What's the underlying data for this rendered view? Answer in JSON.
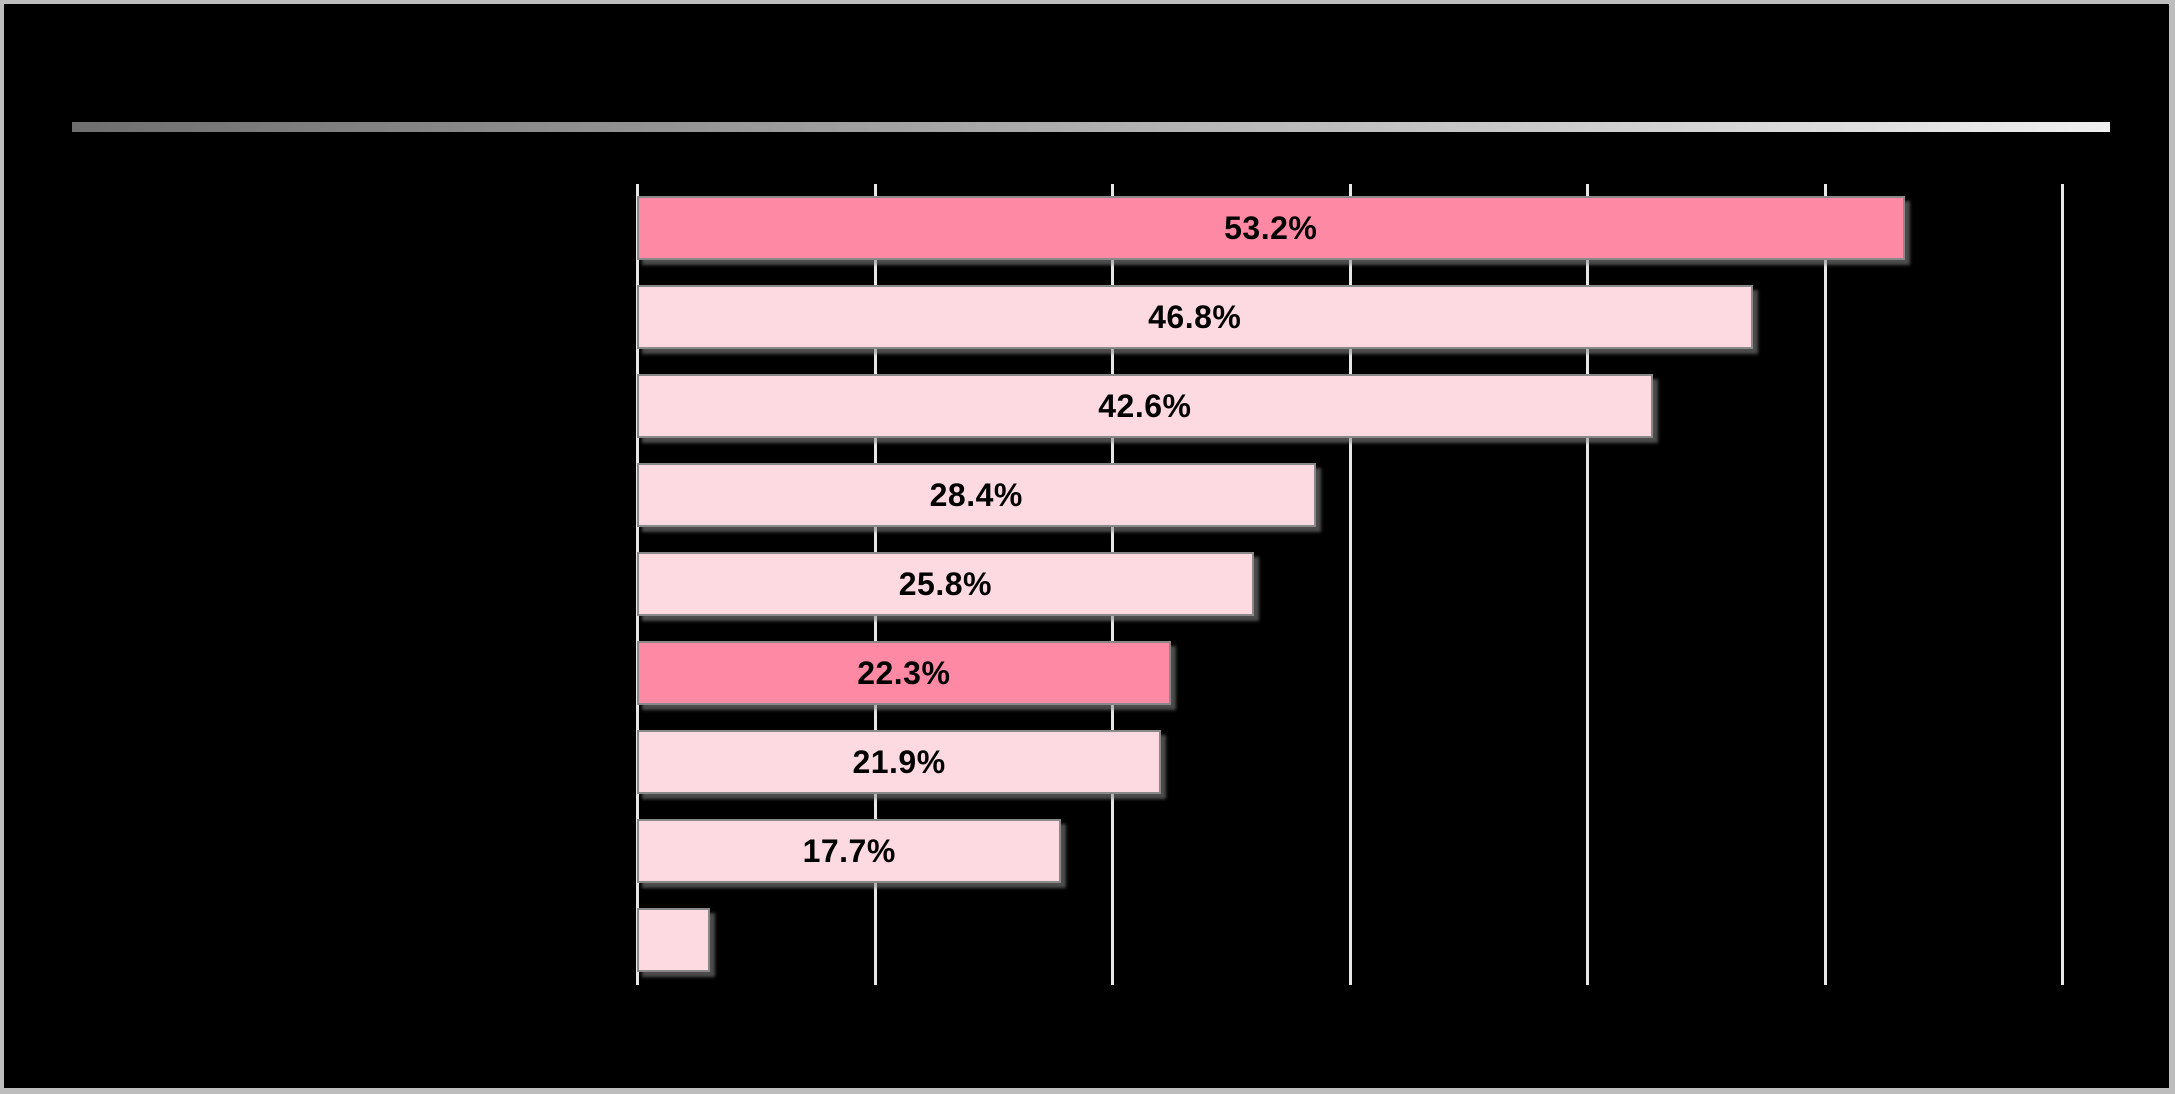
{
  "window": {
    "background_color": "#000000",
    "frame_border_color": "#bdbdbd"
  },
  "header": {
    "title_divider": {
      "gradient_start": "#6f6f6f",
      "gradient_end": "#eeeeee"
    }
  },
  "chart_data": {
    "type": "bar",
    "orientation": "horizontal",
    "values": [
      53.2,
      46.8,
      42.6,
      28.4,
      25.8,
      22.3,
      21.9,
      17.7,
      2.9
    ],
    "data_labels": [
      "53.2%",
      "46.8%",
      "42.6%",
      "28.4%",
      "25.8%",
      "22.3%",
      "21.9%",
      "17.7%",
      ""
    ],
    "highlighted_indices": [
      0,
      5
    ],
    "xlim": [
      0,
      60
    ],
    "gridline_step": 10,
    "grid": "vertical-only",
    "legend": "none",
    "colors": {
      "bar_fill": "#fdd9e1",
      "bar_highlight": "#fd89a4",
      "bar_border": "#898989",
      "gridline": "#e7e7e7",
      "label_text": "#000000",
      "background": "#000000"
    }
  }
}
